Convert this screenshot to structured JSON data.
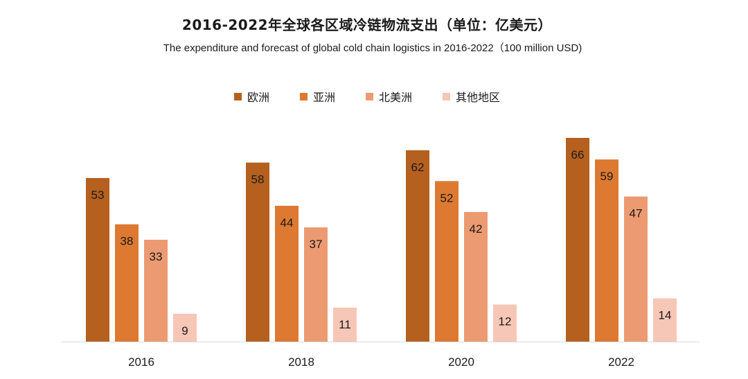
{
  "title": "2016-2022年全球各区域冷链物流支出（单位：亿美元）",
  "subtitle": "The expenditure and forecast of global cold chain logistics in 2016-2022（100 million USD)",
  "chart_data": {
    "type": "bar",
    "categories": [
      "2016",
      "2018",
      "2020",
      "2022"
    ],
    "series": [
      {
        "name": "欧洲",
        "values": [
          53,
          58,
          62,
          66
        ],
        "color": "#b5601f"
      },
      {
        "name": "亚洲",
        "values": [
          38,
          44,
          52,
          59
        ],
        "color": "#dd7930"
      },
      {
        "name": "北美洲",
        "values": [
          33,
          37,
          42,
          47
        ],
        "color": "#ec9a71"
      },
      {
        "name": "其他地区",
        "values": [
          9,
          11,
          12,
          14
        ],
        "color": "#f6c6b6"
      }
    ],
    "ylim": [
      0,
      66
    ],
    "grid": false,
    "legend_position": "top-center",
    "data_labels": true
  }
}
